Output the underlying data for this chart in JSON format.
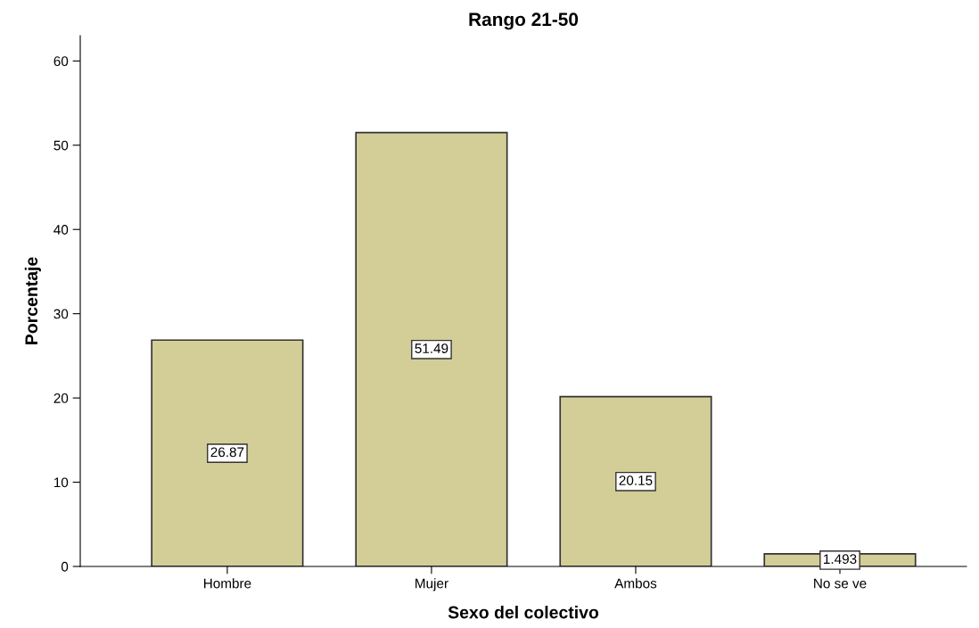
{
  "chart_data": {
    "type": "bar",
    "title": "Rango 21-50",
    "xlabel": "Sexo del colectivo",
    "ylabel": "Porcentaje",
    "categories": [
      "Hombre",
      "Mujer",
      "Ambos",
      "No se ve"
    ],
    "values": [
      26.87,
      51.49,
      20.15,
      1.493
    ],
    "color": "#d3ce97",
    "ylim": [
      0,
      63
    ],
    "yticks": [
      0,
      10,
      20,
      30,
      40,
      50,
      60
    ],
    "data_labels": true,
    "grid": false,
    "legend": false
  }
}
